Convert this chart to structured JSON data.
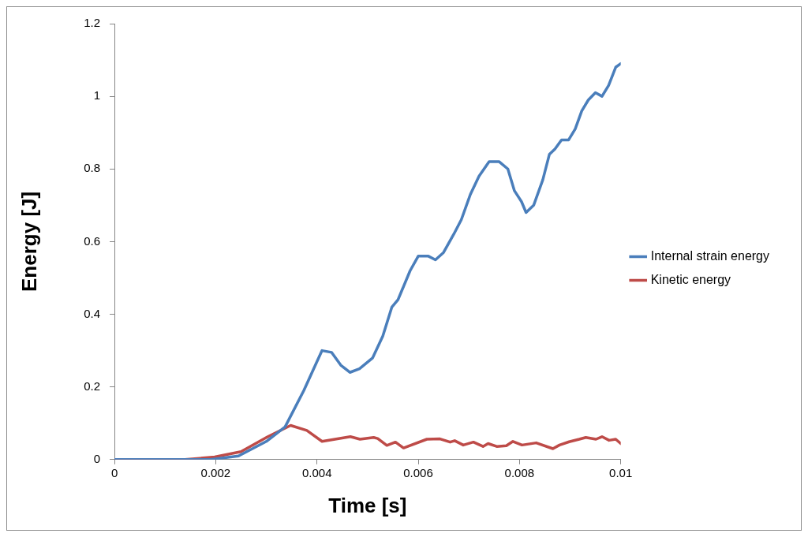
{
  "chart_data": {
    "type": "line",
    "xlabel": "Time [s]",
    "ylabel": "Energy [J]",
    "xlim": [
      0,
      0.01
    ],
    "xticks": [
      0,
      0.002,
      0.004,
      0.006,
      0.008,
      0.01
    ],
    "ylim": [
      0,
      1.2
    ],
    "yticks": [
      0,
      0.2,
      0.4,
      0.6,
      0.8,
      1,
      1.2
    ],
    "grid": false,
    "legend": "right",
    "marker": "none",
    "line_style": "solid",
    "series": [
      {
        "name": "Internal strain energy",
        "color": "#4a7ebb",
        "x": [
          0,
          0.0019,
          0.00245,
          0.003,
          0.00337,
          0.00374,
          0.004,
          0.0041,
          0.00429,
          0.00447,
          0.00465,
          0.00484,
          0.0051,
          0.0053,
          0.00548,
          0.0056,
          0.00584,
          0.006,
          0.0062,
          0.00634,
          0.0065,
          0.0067,
          0.00685,
          0.00703,
          0.0072,
          0.0074,
          0.0076,
          0.00777,
          0.0079,
          0.00804,
          0.00813,
          0.00828,
          0.00846,
          0.00859,
          0.0087,
          0.00883,
          0.00897,
          0.0091,
          0.00923,
          0.00936,
          0.0095,
          0.00963,
          0.00976,
          0.0099,
          0.01
        ],
        "values": [
          0,
          0,
          0.01,
          0.05,
          0.09,
          0.19,
          0.27,
          0.3,
          0.295,
          0.26,
          0.24,
          0.25,
          0.28,
          0.34,
          0.42,
          0.44,
          0.52,
          0.56,
          0.56,
          0.55,
          0.57,
          0.62,
          0.66,
          0.73,
          0.78,
          0.82,
          0.82,
          0.8,
          0.74,
          0.71,
          0.68,
          0.7,
          0.77,
          0.84,
          0.855,
          0.88,
          0.88,
          0.91,
          0.96,
          0.99,
          1.01,
          1,
          1.03,
          1.08,
          1.09
        ]
      },
      {
        "name": "Kinetic energy",
        "color": "#be4b48",
        "x": [
          0,
          0.00139,
          0.00198,
          0.0025,
          0.00303,
          0.00348,
          0.0038,
          0.0041,
          0.00466,
          0.00485,
          0.00512,
          0.0052,
          0.00538,
          0.00555,
          0.00571,
          0.00617,
          0.00643,
          0.00663,
          0.00672,
          0.00689,
          0.00709,
          0.00728,
          0.00738,
          0.00755,
          0.00774,
          0.00787,
          0.00805,
          0.00833,
          0.00866,
          0.00879,
          0.00898,
          0.00918,
          0.00931,
          0.00951,
          0.00963,
          0.00977,
          0.0099,
          0.01
        ],
        "values": [
          0,
          0,
          0.007,
          0.022,
          0.063,
          0.094,
          0.08,
          0.05,
          0.063,
          0.056,
          0.061,
          0.058,
          0.039,
          0.048,
          0.032,
          0.056,
          0.057,
          0.048,
          0.052,
          0.04,
          0.048,
          0.036,
          0.044,
          0.036,
          0.038,
          0.05,
          0.04,
          0.046,
          0.03,
          0.04,
          0.049,
          0.056,
          0.061,
          0.056,
          0.063,
          0.053,
          0.056,
          0.044
        ]
      }
    ]
  }
}
